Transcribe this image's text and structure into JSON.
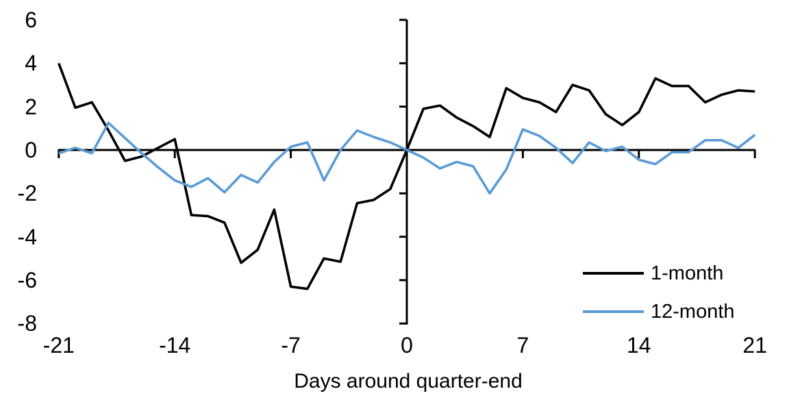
{
  "chart_data": {
    "type": "line",
    "title": "",
    "xlabel": "Days around quarter-end",
    "ylabel": "",
    "x": [
      -21,
      -20,
      -19,
      -18,
      -17,
      -16,
      -15,
      -14,
      -13,
      -12,
      -11,
      -10,
      -9,
      -8,
      -7,
      -6,
      -5,
      -4,
      -3,
      -2,
      -1,
      0,
      1,
      2,
      3,
      4,
      5,
      6,
      7,
      8,
      9,
      10,
      11,
      12,
      13,
      14,
      15,
      16,
      17,
      18,
      19,
      20,
      21
    ],
    "series": [
      {
        "name": "1-month",
        "color": "#000000",
        "values": [
          4.0,
          1.95,
          2.2,
          0.9,
          -0.5,
          -0.3,
          0.1,
          0.5,
          -3.0,
          -3.05,
          -3.35,
          -5.2,
          -4.6,
          -2.75,
          -6.3,
          -6.4,
          -5.0,
          -5.15,
          -2.45,
          -2.3,
          -1.8,
          0.0,
          1.9,
          2.05,
          1.5,
          1.1,
          0.6,
          2.85,
          2.4,
          2.2,
          1.75,
          3.0,
          2.75,
          1.65,
          1.15,
          1.75,
          3.3,
          2.95,
          2.95,
          2.2,
          2.55,
          2.75,
          2.7
        ]
      },
      {
        "name": "12-month",
        "color": "#5B9BD5",
        "values": [
          -0.15,
          0.1,
          -0.15,
          1.25,
          0.55,
          -0.15,
          -0.8,
          -1.4,
          -1.7,
          -1.3,
          -1.95,
          -1.15,
          -1.5,
          -0.55,
          0.15,
          0.35,
          -1.4,
          0.0,
          0.9,
          0.6,
          0.35,
          0.0,
          -0.35,
          -0.85,
          -0.55,
          -0.75,
          -2.0,
          -0.9,
          0.95,
          0.65,
          0.1,
          -0.6,
          0.35,
          -0.05,
          0.15,
          -0.45,
          -0.65,
          -0.1,
          -0.1,
          0.45,
          0.45,
          0.1,
          0.7
        ]
      }
    ],
    "xlim": [
      -21,
      21
    ],
    "ylim": [
      -8,
      6
    ],
    "xtick_labels": [
      "-21",
      "-14",
      "-7",
      "0",
      "7",
      "14",
      "21"
    ],
    "xtick_values": [
      -21,
      -14,
      -7,
      0,
      7,
      14,
      21
    ],
    "ytick_labels": [
      "6",
      "4",
      "2",
      "0",
      "-2",
      "-4",
      "-6",
      "-8"
    ],
    "ytick_values": [
      6,
      4,
      2,
      0,
      -2,
      -4,
      -6,
      -8
    ],
    "grid": false,
    "legend_position": "inside-bottom-right",
    "axis_color": "#000000",
    "background_color": "#ffffff"
  }
}
